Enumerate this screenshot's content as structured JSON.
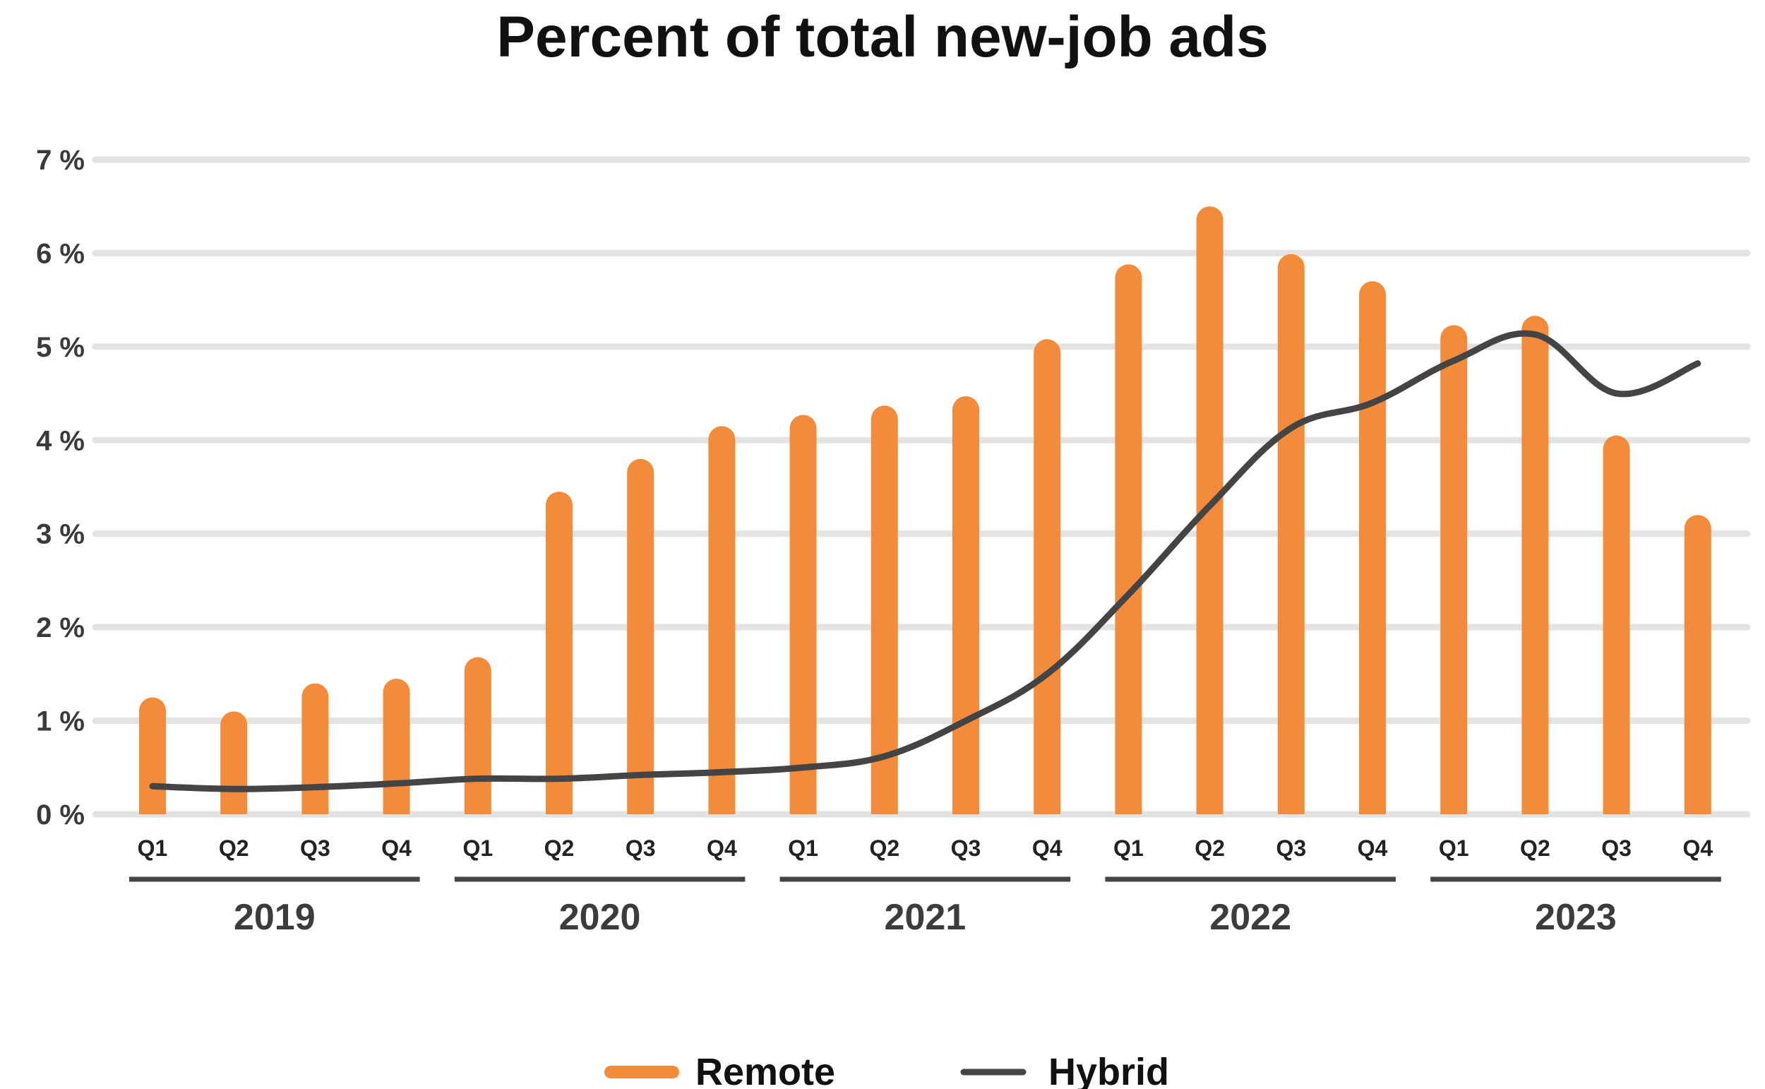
{
  "chart_data": {
    "type": "bar",
    "title": "Percent of total new-job ads",
    "xlabel": "",
    "ylabel": "",
    "ylim": [
      0,
      7
    ],
    "yticks": [
      0,
      1,
      2,
      3,
      4,
      5,
      6,
      7
    ],
    "ytick_labels": [
      "0 %",
      "1 %",
      "2 %",
      "3 %",
      "4 %",
      "5 %",
      "6 %",
      "7 %"
    ],
    "grid": true,
    "legend_position": "bottom-center",
    "categories": [
      "Q1",
      "Q2",
      "Q3",
      "Q4",
      "Q1",
      "Q2",
      "Q3",
      "Q4",
      "Q1",
      "Q2",
      "Q3",
      "Q4",
      "Q1",
      "Q2",
      "Q3",
      "Q4",
      "Q1",
      "Q2",
      "Q3",
      "Q4"
    ],
    "groups": [
      {
        "label": "2019",
        "count": 4
      },
      {
        "label": "2020",
        "count": 4
      },
      {
        "label": "2021",
        "count": 4
      },
      {
        "label": "2022",
        "count": 4
      },
      {
        "label": "2023",
        "count": 4
      }
    ],
    "series": [
      {
        "name": "Remote",
        "type": "bar",
        "color": "#f28c3c",
        "values": [
          1.25,
          1.1,
          1.4,
          1.45,
          1.68,
          3.45,
          3.8,
          4.15,
          4.27,
          4.37,
          4.47,
          5.08,
          5.88,
          6.5,
          5.99,
          5.7,
          5.23,
          5.33,
          4.05,
          3.2
        ]
      },
      {
        "name": "Hybrid",
        "type": "line",
        "color": "#444444",
        "values": [
          0.3,
          0.27,
          0.29,
          0.33,
          0.38,
          0.38,
          0.42,
          0.45,
          0.5,
          0.62,
          1.0,
          1.5,
          2.35,
          3.3,
          4.13,
          4.4,
          4.85,
          5.13,
          4.5,
          4.82
        ]
      }
    ]
  }
}
